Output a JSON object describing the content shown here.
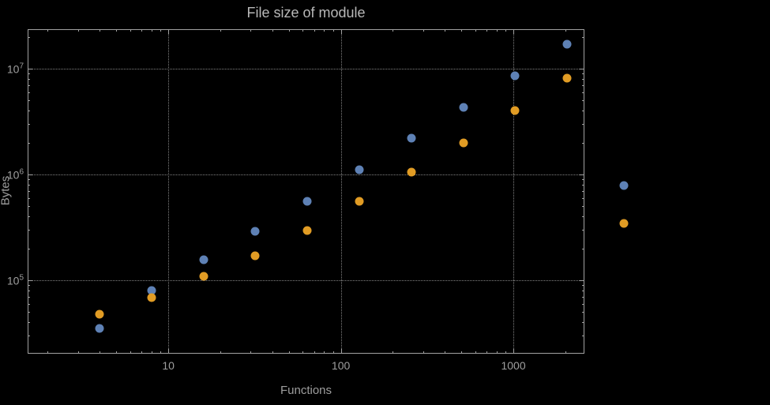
{
  "chart_data": {
    "type": "scatter",
    "title": "File size of module",
    "xlabel": "Functions",
    "ylabel": "Bytes",
    "x_scale": "log",
    "y_scale": "log",
    "grid": "dotted",
    "xlim": [
      1.53,
      2580
    ],
    "ylim": [
      20200,
      23600000
    ],
    "x": [
      4,
      8,
      16,
      32,
      64,
      128,
      256,
      512,
      1024,
      2048
    ],
    "series": [
      {
        "name": "blue",
        "color": "#5e81b5",
        "values": [
          35000,
          80000,
          155000,
          290000,
          560000,
          1100000,
          2200000,
          4300000,
          8500000,
          17000000
        ]
      },
      {
        "name": "orange",
        "color": "#e19c24",
        "values": [
          48000,
          68000,
          108000,
          170000,
          295000,
          560000,
          1050000,
          2000000,
          4000000,
          8200000
        ]
      }
    ],
    "x_ticks": [
      {
        "value": 10,
        "label": "10"
      },
      {
        "value": 100,
        "label": "100"
      },
      {
        "value": 1000,
        "label": "1000"
      }
    ],
    "y_ticks": [
      {
        "value": 100000,
        "base": "10",
        "exp": "5"
      },
      {
        "value": 1000000,
        "base": "10",
        "exp": "6"
      },
      {
        "value": 10000000,
        "base": "10",
        "exp": "7"
      }
    ],
    "legend": {
      "position": "outside-right",
      "entries": [
        {
          "color": "#5e81b5"
        },
        {
          "color": "#e19c24"
        }
      ]
    }
  },
  "colors": {
    "background": "#000000",
    "frame": "#a2a2a2",
    "gridline": "#828282",
    "tick_label": "#9e9e9e",
    "title": "#b8b8b8",
    "series_blue": "#5e81b5",
    "series_orange": "#e19c24"
  }
}
